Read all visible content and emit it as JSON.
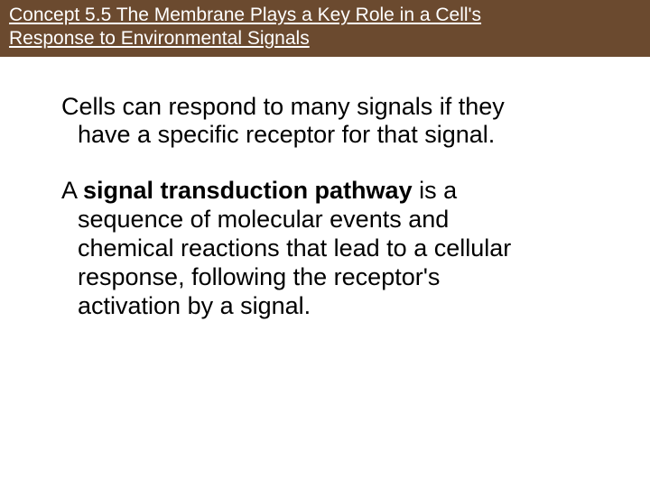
{
  "header": {
    "bg_color": "#6b4a2f",
    "text_color": "#ffffff",
    "line1": "Concept 5.5 The Membrane Plays a Key Role in a Cell's",
    "line2": "Response to Environmental Signals"
  },
  "body": {
    "para1_a": "Cells can respond to many signals if they",
    "para1_b": "have a specific receptor for that signal.",
    "para2_a_pre": "A ",
    "para2_a_bold": "signal transduction pathway",
    "para2_a_post": " is a",
    "para2_b": "sequence of molecular events and",
    "para2_c": "chemical reactions that lead to a cellular",
    "para2_d": "response, following the receptor's",
    "para2_e": "activation by a signal."
  },
  "style": {
    "header_fontsize": 21,
    "body_fontsize": 27
  }
}
